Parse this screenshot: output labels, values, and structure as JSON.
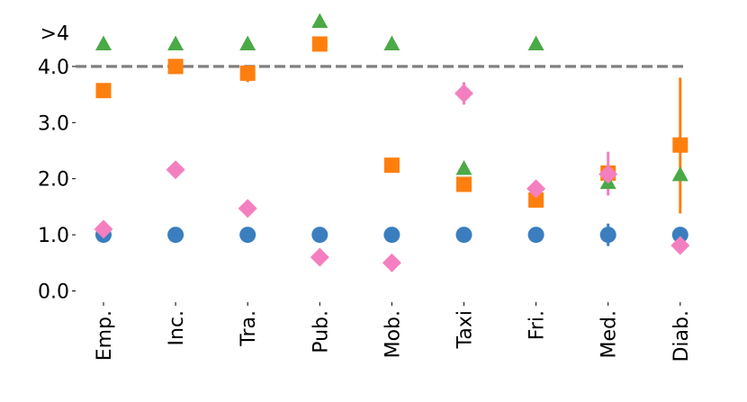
{
  "chart_data": {
    "type": "scatter",
    "title": "",
    "xlabel": "",
    "ylabel": "",
    "categories": [
      "Emp.",
      "Inc.",
      "Tra.",
      "Pub.",
      "Mob.",
      "Taxi",
      "Fri.",
      "Med.",
      "Diab."
    ],
    "y_ticks": [
      {
        "value": 0,
        "label": "0.0"
      },
      {
        "value": 1,
        "label": "1.0"
      },
      {
        "value": 2,
        "label": "2.0"
      },
      {
        "value": 3,
        "label": "3.0"
      },
      {
        "value": 4,
        "label": "4.0"
      },
      {
        "value": 4.6,
        "label": ">4"
      }
    ],
    "ylim": [
      -0.2,
      4.85
    ],
    "reference_line": {
      "value": 4.0,
      "color": "#808080",
      "style": "dashed"
    },
    "grid": false,
    "legend": "none",
    "series": [
      {
        "name": "circle",
        "marker": "circle",
        "color": "#3a7ebf",
        "values": [
          1.0,
          1.0,
          1.0,
          1.0,
          1.0,
          1.0,
          1.0,
          1.0,
          1.0
        ],
        "errors": [
          null,
          null,
          null,
          null,
          null,
          null,
          null,
          [
            0.8,
            1.2
          ],
          [
            0.9,
            1.1
          ]
        ]
      },
      {
        "name": "square",
        "marker": "square",
        "color": "#ff7f0e",
        "values": [
          3.57,
          4.0,
          3.88,
          4.4,
          2.24,
          1.9,
          1.62,
          2.1,
          2.6
        ],
        "errors": [
          null,
          null,
          [
            3.72,
            4.0
          ],
          null,
          null,
          null,
          null,
          null,
          [
            1.38,
            3.8
          ]
        ]
      },
      {
        "name": "triangle",
        "marker": "triangle",
        "color": "#4aaa46",
        "values": [
          4.4,
          4.4,
          4.4,
          4.8,
          4.4,
          2.18,
          4.4,
          1.93,
          2.07
        ],
        "errors": [
          null,
          null,
          null,
          null,
          null,
          null,
          null,
          null,
          null
        ]
      },
      {
        "name": "diamond",
        "marker": "diamond",
        "color": "#f47fc0",
        "values": [
          1.1,
          2.16,
          1.47,
          0.6,
          0.5,
          3.52,
          1.82,
          2.08,
          0.81
        ],
        "errors": [
          null,
          null,
          null,
          null,
          null,
          [
            3.32,
            3.72
          ],
          null,
          [
            1.7,
            2.48
          ],
          null
        ]
      }
    ]
  }
}
